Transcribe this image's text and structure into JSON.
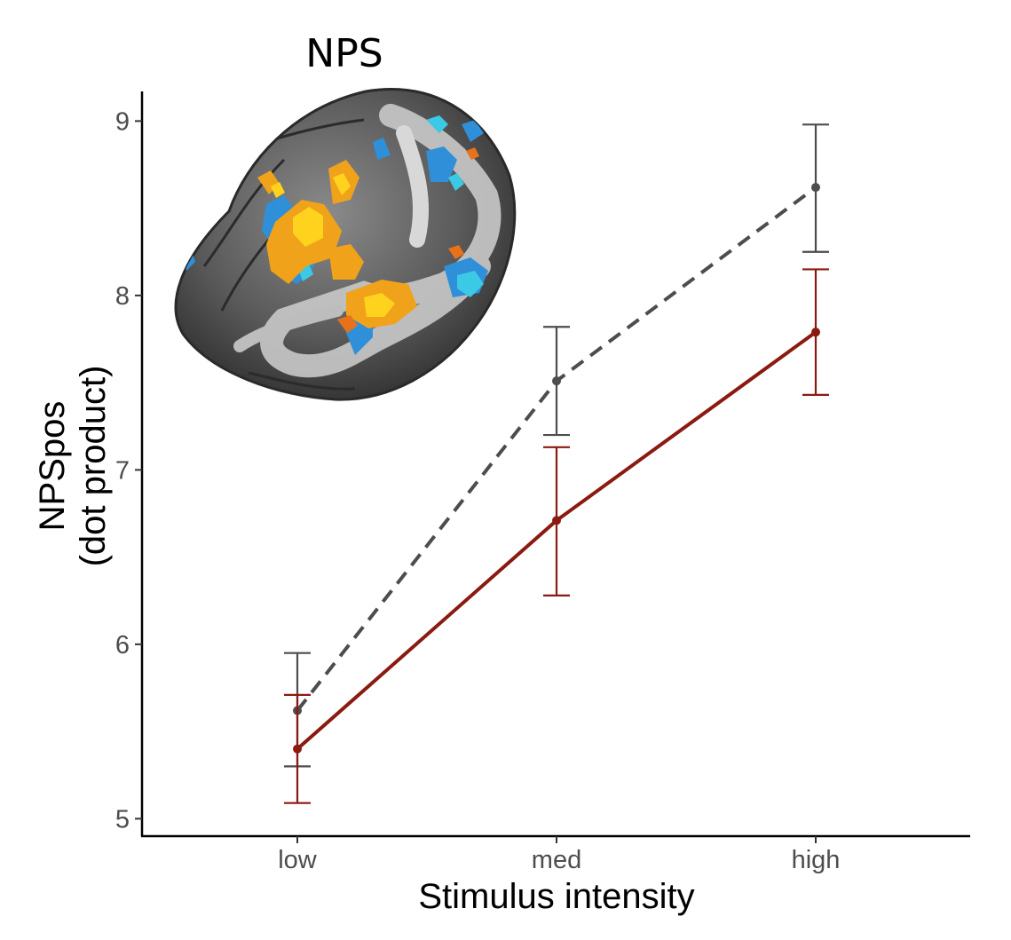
{
  "chart_data": {
    "type": "line",
    "title": "",
    "inset": {
      "title": "NPS",
      "image": "brain-map-image"
    },
    "xlabel": "Stimulus intensity",
    "ylabel_line1": "NPSpos",
    "ylabel_line2": "(dot product)",
    "categories": [
      "low",
      "med",
      "high"
    ],
    "yticks": [
      "5",
      "6",
      "7",
      "8",
      "9"
    ],
    "ylim": [
      4.9,
      9.17
    ],
    "grid": false,
    "legend": "none",
    "series": [
      {
        "style": "dashed",
        "color": "#4d4d4d",
        "values": [
          5.62,
          7.51,
          8.62
        ],
        "err_low": [
          5.3,
          7.2,
          8.25
        ],
        "err_high": [
          5.95,
          7.82,
          8.98
        ]
      },
      {
        "style": "solid",
        "color": "#8b1a10",
        "values": [
          5.4,
          6.71,
          7.79
        ],
        "err_low": [
          5.09,
          6.28,
          7.43
        ],
        "err_high": [
          5.71,
          7.13,
          8.15
        ]
      }
    ]
  }
}
